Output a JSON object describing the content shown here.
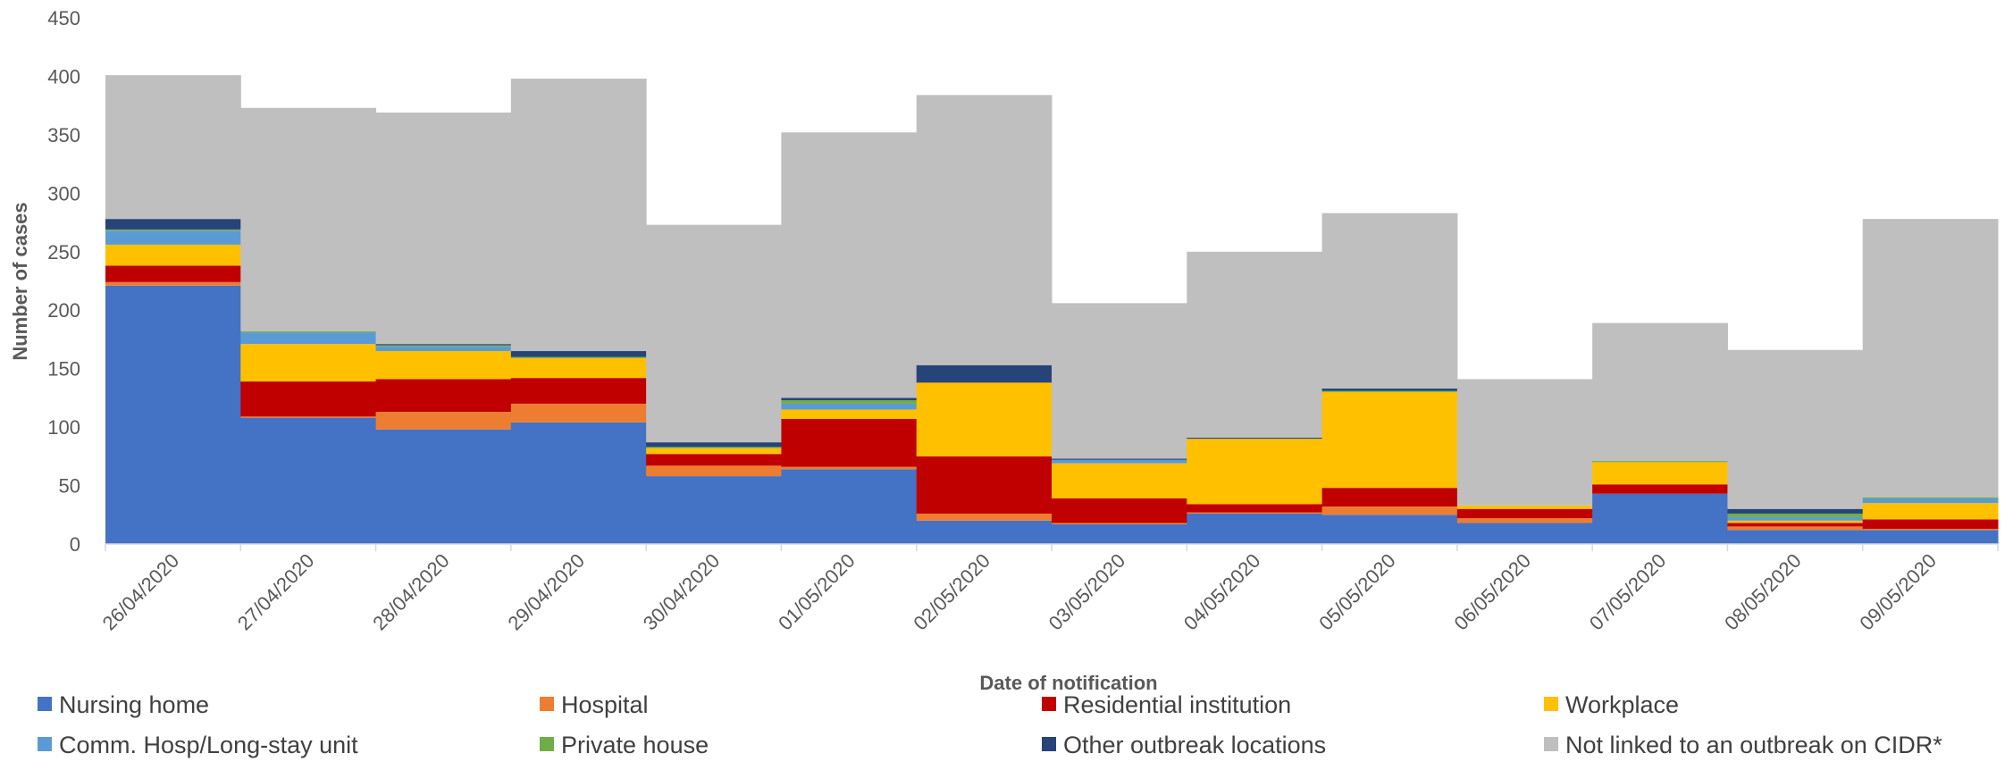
{
  "chart_data": {
    "type": "bar",
    "stacked": true,
    "xlabel": "Date of notification",
    "ylabel": "Number of cases",
    "ylim": [
      0,
      450
    ],
    "yticks": [
      0,
      50,
      100,
      150,
      200,
      250,
      300,
      350,
      400,
      450
    ],
    "grid": false,
    "legend_position": "bottom",
    "categories": [
      "26/04/2020",
      "27/04/2020",
      "28/04/2020",
      "29/04/2020",
      "30/04/2020",
      "01/05/2020",
      "02/05/2020",
      "03/05/2020",
      "04/05/2020",
      "05/05/2020",
      "06/05/2020",
      "07/05/2020",
      "08/05/2020",
      "09/05/2020"
    ],
    "series": [
      {
        "name": "Nursing home",
        "color": "#4472C4",
        "values": [
          221,
          108,
          98,
          104,
          58,
          64,
          20,
          17,
          26,
          25,
          18,
          43,
          12,
          12
        ]
      },
      {
        "name": "Hospital",
        "color": "#ED7D31",
        "values": [
          3,
          1,
          15,
          16,
          9,
          2,
          6,
          1,
          1,
          7,
          4,
          0,
          3,
          1
        ]
      },
      {
        "name": "Residential institution",
        "color": "#C00000",
        "values": [
          14,
          30,
          28,
          22,
          10,
          41,
          49,
          21,
          7,
          16,
          8,
          8,
          3,
          8
        ]
      },
      {
        "name": "Workplace",
        "color": "#FFC000",
        "values": [
          18,
          32,
          24,
          17,
          5,
          8,
          63,
          30,
          56,
          82,
          3,
          19,
          2,
          14
        ]
      },
      {
        "name": "Comm. Hosp/Long-stay unit",
        "color": "#5B9BD5",
        "values": [
          12,
          10,
          4,
          0,
          0,
          5,
          0,
          3,
          0,
          0,
          0,
          0,
          3,
          4
        ]
      },
      {
        "name": "Private house",
        "color": "#70AD47",
        "values": [
          1,
          1,
          1,
          1,
          1,
          3,
          0,
          0,
          0,
          1,
          0,
          1,
          3,
          1
        ]
      },
      {
        "name": "Other outbreak locations",
        "color": "#264478",
        "values": [
          9,
          0,
          1,
          5,
          4,
          2,
          15,
          1,
          1,
          2,
          0,
          0,
          4,
          0
        ]
      },
      {
        "name": "Not linked to an outbreak on CIDR*",
        "color": "#BFBFBF",
        "values": [
          123,
          191,
          198,
          233,
          186,
          227,
          231,
          133,
          159,
          150,
          108,
          118,
          136,
          238
        ]
      }
    ]
  }
}
